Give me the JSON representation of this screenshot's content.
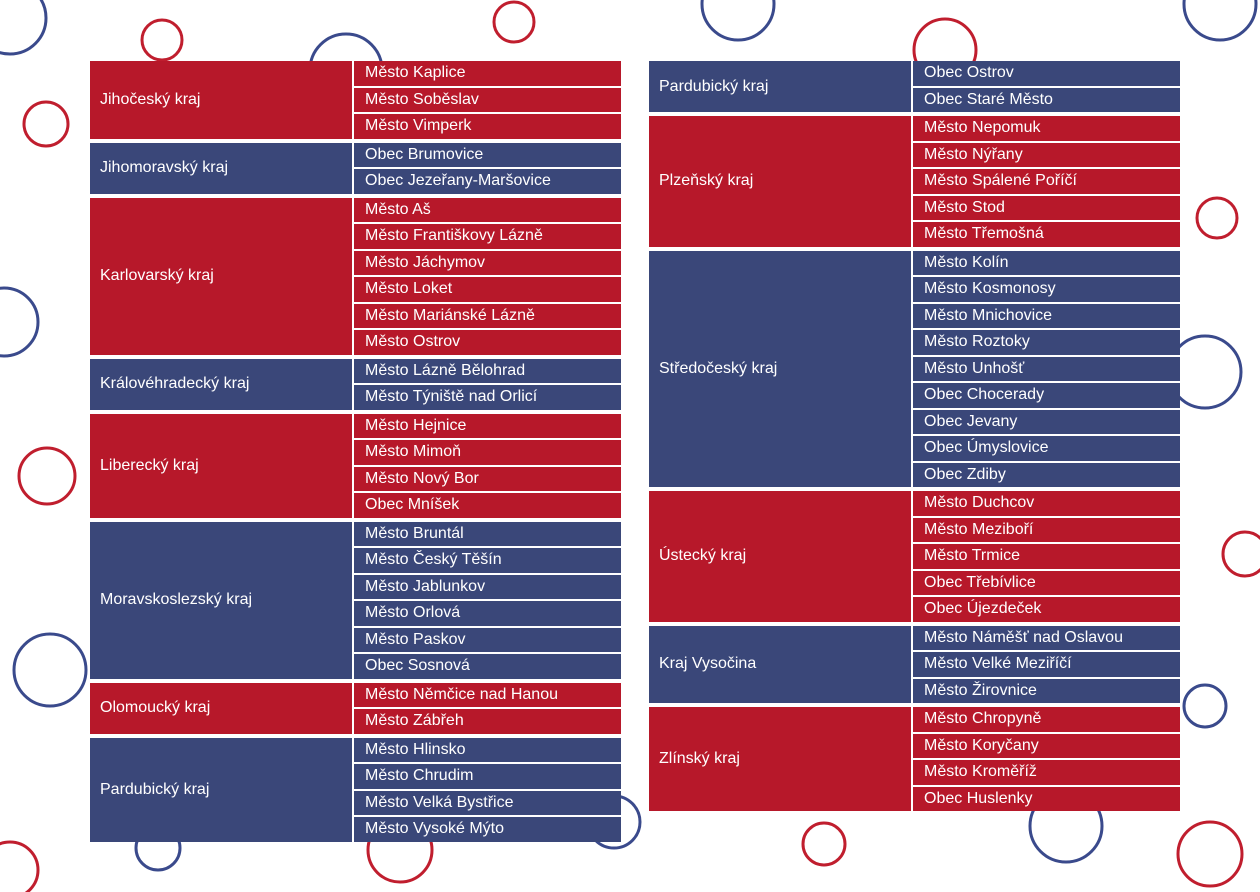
{
  "colors": {
    "red": "#b7182a",
    "blue": "#3a4779",
    "ring_red": "#c01e2e",
    "ring_blue": "#3a4a8c"
  },
  "left_column": [
    {
      "color": "red",
      "region": "Jihočeský kraj",
      "towns": [
        "Město Kaplice",
        "Město Soběslav",
        "Město Vimperk"
      ]
    },
    {
      "color": "blue",
      "region": "Jihomoravský kraj",
      "towns": [
        "Obec Brumovice",
        "Obec Jezeřany-Maršovice"
      ]
    },
    {
      "color": "red",
      "region": "Karlovarský kraj",
      "towns": [
        "Město Aš",
        "Město Františkovy Lázně",
        "Město Jáchymov",
        "Město Loket",
        "Město Mariánské Lázně",
        "Město Ostrov"
      ]
    },
    {
      "color": "blue",
      "region": "Královéhradecký kraj",
      "towns": [
        "Město Lázně Bělohrad",
        "Město Týniště nad Orlicí"
      ]
    },
    {
      "color": "red",
      "region": "Liberecký kraj",
      "towns": [
        "Město Hejnice",
        "Město Mimoň",
        "Město Nový Bor",
        "Obec Mníšek"
      ]
    },
    {
      "color": "blue",
      "region": "Moravskoslezský kraj",
      "towns": [
        "Město Bruntál",
        "Město Český Těšín",
        "Město Jablunkov",
        "Město Orlová",
        "Město Paskov",
        "Obec Sosnová"
      ]
    },
    {
      "color": "red",
      "region": "Olomoucký kraj",
      "towns": [
        "Město Němčice nad Hanou",
        "Město Zábřeh"
      ]
    },
    {
      "color": "blue",
      "region": "Pardubický kraj",
      "towns": [
        "Město Hlinsko",
        "Město Chrudim",
        "Město Velká Bystřice",
        "Město Vysoké Mýto"
      ]
    }
  ],
  "right_column": [
    {
      "color": "blue",
      "region": "Pardubický kraj",
      "towns": [
        "Obec Ostrov",
        "Obec Staré Město"
      ]
    },
    {
      "color": "red",
      "region": "Plzeňský kraj",
      "towns": [
        "Město Nepomuk",
        "Město Nýřany",
        "Město Spálené Poříčí",
        "Město Stod",
        "Město Třemošná"
      ]
    },
    {
      "color": "blue",
      "region": "Středočeský kraj",
      "towns": [
        "Město Kolín",
        "Město Kosmonosy",
        "Město Mnichovice",
        "Město Roztoky",
        "Město Unhošť",
        "Obec Chocerady",
        "Obec Jevany",
        "Obec Úmyslovice",
        "Obec Zdiby"
      ]
    },
    {
      "color": "red",
      "region": "Ústecký kraj",
      "towns": [
        "Město Duchcov",
        "Město Meziboří",
        "Město Trmice",
        "Obec Třebívlice",
        "Obec Újezdeček"
      ]
    },
    {
      "color": "blue",
      "region": "Kraj Vysočina",
      "towns": [
        "Město Náměšť nad Oslavou",
        "Město Velké Meziříčí",
        "Město Žirovnice"
      ]
    },
    {
      "color": "red",
      "region": "Zlínský kraj",
      "towns": [
        "Město Chropyně",
        "Město Koryčany",
        "Město Kroměříž",
        "Obec Huslenky"
      ]
    }
  ]
}
